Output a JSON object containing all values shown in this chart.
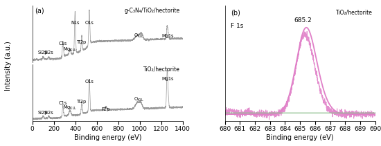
{
  "panel_a_xlim": [
    0,
    1400
  ],
  "panel_b_xlim": [
    680,
    690
  ],
  "panel_a_xlabel": "Binding energy (eV)",
  "panel_b_xlabel": "Binding energy (eV)",
  "ylabel": "Intensity (a.u.)",
  "top_label": "g-C₃N₄/TiO₂/hectorite",
  "bottom_label": "TiO₂/hectorite",
  "panel_b_top_label": "TiO₂/hectorite",
  "panel_b_peak_label": "685.2",
  "panel_b_sub_label": "F 1s",
  "line_color": "#999999",
  "pink_color": "#e080c8",
  "green_color": "#90c090",
  "background": "#ffffff"
}
